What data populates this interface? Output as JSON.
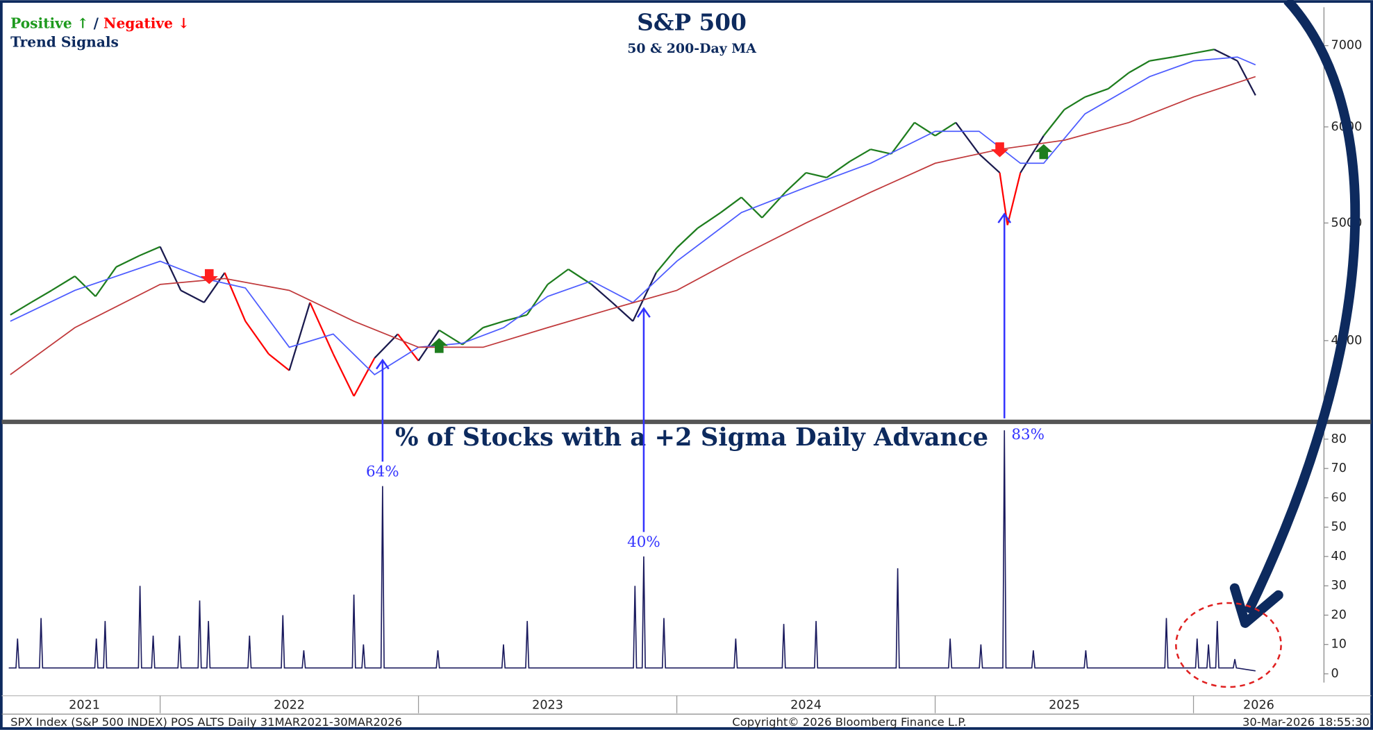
{
  "chart_data": [
    {
      "type": "line",
      "title": "S&P 500",
      "subtitle": "50 & 200-Day MA",
      "log_scale": true,
      "legend": {
        "positive": "Positive ↑",
        "separator": " / ",
        "negative": "Negative ↓",
        "caption": "Trend Signals"
      },
      "ylim": [
        3440,
        7530
      ],
      "yticks": [
        4000,
        5000,
        6000,
        7000
      ],
      "series": [
        {
          "x": [
            2021.42,
            2021.5,
            2021.58,
            2021.67,
            2021.75,
            2021.83,
            2021.92,
            2022.0,
            2022.08,
            2022.17,
            2022.25,
            2022.33,
            2022.42,
            2022.5,
            2022.58,
            2022.67,
            2022.75,
            2022.83,
            2022.92,
            2023.0,
            2023.08,
            2023.17,
            2023.25,
            2023.33,
            2023.42,
            2023.5,
            2023.58,
            2023.67,
            2023.75,
            2023.83,
            2023.92,
            2024.0,
            2024.08,
            2024.17,
            2024.25,
            2024.33,
            2024.42,
            2024.5,
            2024.58,
            2024.67,
            2024.75,
            2024.83,
            2024.92,
            2025.0,
            2025.08,
            2025.17,
            2025.25,
            2025.28,
            2025.33,
            2025.42,
            2025.5,
            2025.58,
            2025.67,
            2025.75,
            2025.83,
            2025.92,
            2026.0,
            2026.08,
            2026.17,
            2026.24
          ],
          "values": [
            4200,
            4300,
            4400,
            4520,
            4350,
            4600,
            4700,
            4780,
            4400,
            4300,
            4550,
            4150,
            3900,
            3780,
            4300,
            3900,
            3600,
            3870,
            4050,
            3850,
            4080,
            3970,
            4100,
            4150,
            4200,
            4450,
            4580,
            4450,
            4300,
            4150,
            4550,
            4770,
            4950,
            5100,
            5250,
            5050,
            5300,
            5500,
            5450,
            5620,
            5750,
            5700,
            6050,
            5900,
            6050,
            5700,
            5500,
            4980,
            5500,
            5900,
            6200,
            6350,
            6450,
            6650,
            6800,
            6850,
            6900,
            6950,
            6800,
            6370
          ],
          "colors": [
            "#1e7d1e",
            "#1e7d1e",
            "#1e7d1e",
            "#1e7d1e",
            "#1e7d1e",
            "#1e7d1e",
            "#1e7d1e",
            "#1e7d1e",
            "#1a1a4e",
            "#1a1a4e",
            "#1a1a4e",
            "#ff0000",
            "#ff0000",
            "#ff0000",
            "#1a1a4e",
            "#ff0000",
            "#ff0000",
            "#ff0000",
            "#1a1a4e",
            "#ff0000",
            "#1a1a4e",
            "#1e7d1e",
            "#1e7d1e",
            "#1e7d1e",
            "#1e7d1e",
            "#1e7d1e",
            "#1e7d1e",
            "#1e7d1e",
            "#1a1a4e",
            "#1a1a4e",
            "#1a1a4e",
            "#1e7d1e",
            "#1e7d1e",
            "#1e7d1e",
            "#1e7d1e",
            "#1e7d1e",
            "#1e7d1e",
            "#1e7d1e",
            "#1e7d1e",
            "#1e7d1e",
            "#1e7d1e",
            "#1e7d1e",
            "#1e7d1e",
            "#1e7d1e",
            "#1e7d1e",
            "#1a1a4e",
            "#1a1a4e",
            "#ff0000",
            "#ff0000",
            "#1a1a4e",
            "#1e7d1e",
            "#1e7d1e",
            "#1e7d1e",
            "#1e7d1e",
            "#1e7d1e",
            "#1e7d1e",
            "#1e7d1e",
            "#1e7d1e",
            "#1a1a4e",
            "#1a1a4e"
          ]
        },
        {
          "color": "#4d5cff",
          "x": [
            2021.42,
            2021.67,
            2022.0,
            2022.17,
            2022.33,
            2022.5,
            2022.67,
            2022.83,
            2023.0,
            2023.17,
            2023.33,
            2023.5,
            2023.67,
            2023.83,
            2024.0,
            2024.25,
            2024.5,
            2024.75,
            2025.0,
            2025.17,
            2025.33,
            2025.42,
            2025.58,
            2025.83,
            2026.0,
            2026.17,
            2026.24
          ],
          "values": [
            4150,
            4400,
            4650,
            4500,
            4420,
            3950,
            4050,
            3750,
            3950,
            3980,
            4100,
            4350,
            4480,
            4300,
            4650,
            5100,
            5350,
            5600,
            5950,
            5950,
            5600,
            5600,
            6150,
            6600,
            6800,
            6850,
            6750
          ]
        },
        {
          "color": "#c0393b",
          "x": [
            2021.42,
            2021.67,
            2022.0,
            2022.25,
            2022.5,
            2022.75,
            2023.0,
            2023.25,
            2023.5,
            2023.75,
            2024.0,
            2024.25,
            2024.5,
            2024.75,
            2025.0,
            2025.25,
            2025.5,
            2025.75,
            2026.0,
            2026.24
          ],
          "values": [
            3750,
            4100,
            4450,
            4500,
            4400,
            4150,
            3950,
            3950,
            4100,
            4250,
            4400,
            4700,
            5000,
            5300,
            5600,
            5750,
            5850,
            6050,
            6350,
            6600
          ]
        }
      ],
      "signals": [
        {
          "x": 2022.19,
          "y": 4520,
          "direction": "down",
          "color": "#ff2020"
        },
        {
          "x": 2023.08,
          "y": 3960,
          "direction": "up",
          "color": "#1e7d1e"
        },
        {
          "x": 2025.25,
          "y": 5750,
          "direction": "down",
          "color": "#ff2020"
        },
        {
          "x": 2025.42,
          "y": 5720,
          "direction": "up",
          "color": "#1e7d1e"
        }
      ]
    },
    {
      "type": "line",
      "title": "% of Stocks with a +2 Sigma Daily Advance",
      "ylim": [
        -3,
        85
      ],
      "yticks": [
        0,
        10,
        20,
        30,
        40,
        50,
        60,
        70,
        80
      ],
      "color": "#1a1a5e",
      "x": [
        2021.414,
        2021.442,
        2021.448,
        2021.454,
        2021.533,
        2021.539,
        2021.545,
        2021.747,
        2021.753,
        2021.759,
        2021.781,
        2021.787,
        2021.793,
        2021.916,
        2021.922,
        2021.928,
        2021.967,
        2021.973,
        2021.979,
        2022.069,
        2022.075,
        2022.081,
        2022.147,
        2022.153,
        2022.159,
        2022.181,
        2022.187,
        2022.193,
        2022.34,
        2022.346,
        2022.352,
        2022.469,
        2022.475,
        2022.481,
        2022.55,
        2022.556,
        2022.562,
        2022.744,
        2022.75,
        2022.756,
        2022.781,
        2022.787,
        2022.793,
        2022.855,
        2022.861,
        2022.867,
        2023.069,
        2023.075,
        2023.081,
        2023.323,
        2023.329,
        2023.335,
        2023.415,
        2023.421,
        2023.427,
        2023.832,
        2023.838,
        2023.844,
        2023.866,
        2023.872,
        2023.878,
        2023.944,
        2023.95,
        2023.956,
        2024.222,
        2024.228,
        2024.234,
        2024.408,
        2024.414,
        2024.42,
        2024.533,
        2024.539,
        2024.545,
        2024.849,
        2024.855,
        2024.861,
        2025.052,
        2025.058,
        2025.064,
        2025.171,
        2025.177,
        2025.183,
        2025.262,
        2025.268,
        2025.274,
        2025.374,
        2025.38,
        2025.386,
        2025.577,
        2025.583,
        2025.589,
        2025.889,
        2025.895,
        2025.901,
        2026.008,
        2026.014,
        2026.02,
        2026.052,
        2026.058,
        2026.064,
        2026.086,
        2026.092,
        2026.098,
        2026.154,
        2026.16,
        2026.166,
        2026.24
      ],
      "values": [
        2,
        2,
        12,
        2,
        2,
        19,
        2,
        2,
        12,
        2,
        2,
        18,
        2,
        2,
        30,
        2,
        2,
        13,
        2,
        2,
        13,
        2,
        2,
        25,
        2,
        2,
        18,
        2,
        2,
        13,
        2,
        2,
        20,
        2,
        2,
        8,
        2,
        2,
        27,
        2,
        2,
        10,
        2,
        2,
        64,
        2,
        2,
        8,
        2,
        2,
        10,
        2,
        2,
        18,
        2,
        2,
        30,
        2,
        2,
        40,
        2,
        2,
        19,
        2,
        2,
        12,
        2,
        2,
        17,
        2,
        2,
        18,
        2,
        2,
        36,
        2,
        2,
        12,
        2,
        2,
        10,
        2,
        2,
        83,
        2,
        2,
        8,
        2,
        2,
        8,
        2,
        2,
        19,
        2,
        2,
        12,
        2,
        2,
        10,
        2,
        2,
        18,
        2,
        2,
        5,
        2,
        1
      ],
      "annotations": [
        {
          "label": "64%",
          "x": 2022.861
        },
        {
          "label": "40%",
          "x": 2023.872
        },
        {
          "label": "83%",
          "x": 2025.268
        }
      ]
    }
  ],
  "x_axis": {
    "xlim": [
      2021.414,
      2026.505
    ],
    "xticks": [
      2022,
      2023,
      2024,
      2025,
      2026
    ],
    "labels": [
      "2021",
      "2022",
      "2023",
      "2024",
      "2025",
      "2026"
    ]
  },
  "footer": {
    "left": "SPX Index (S&P 500 INDEX) POS ALTS Daily 31MAR2021-30MAR2026",
    "center": "Copyright© 2026 Bloomberg Finance L.P.",
    "right": "30-Mar-2026 18:55:30"
  }
}
